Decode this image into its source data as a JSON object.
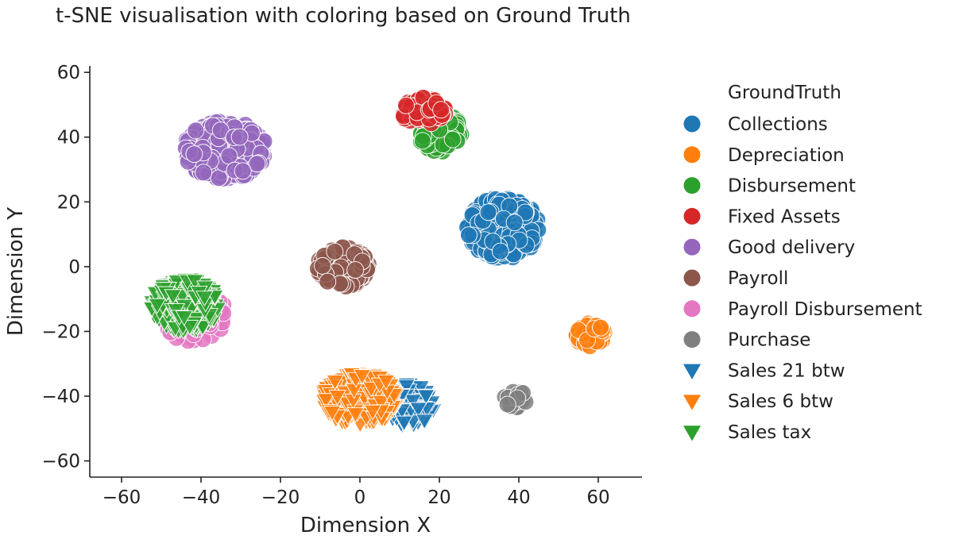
{
  "chart_data": {
    "type": "scatter",
    "title": "t-SNE visualisation with coloring based on Ground Truth",
    "xlabel": "Dimension X",
    "ylabel": "Dimension Y",
    "xlim": [
      -68,
      71
    ],
    "ylim": [
      -65,
      62
    ],
    "xticks": [
      -60,
      -40,
      -20,
      0,
      20,
      40,
      60
    ],
    "yticks": [
      -60,
      -40,
      -20,
      0,
      20,
      40,
      60
    ],
    "xtick_labels": [
      "−60",
      "−40",
      "−20",
      "0",
      "20",
      "40",
      "60"
    ],
    "ytick_labels": [
      "−60",
      "−40",
      "−20",
      "0",
      "20",
      "40",
      "60"
    ],
    "grid": false,
    "legend": {
      "title": "GroundTruth",
      "placement": "right, outside plot"
    },
    "series": [
      {
        "name": "Collections",
        "color": "#1f77b4",
        "marker": "circle",
        "center": [
          36,
          12
        ],
        "spread": [
          19,
          20
        ],
        "count": 340
      },
      {
        "name": "Depreciation",
        "color": "#ff7f0e",
        "marker": "circle",
        "center": [
          58,
          -21
        ],
        "spread": [
          8,
          8
        ],
        "count": 60
      },
      {
        "name": "Disbursement",
        "color": "#2ca02c",
        "marker": "circle",
        "center": [
          20,
          42
        ],
        "spread": [
          12,
          14
        ],
        "count": 110
      },
      {
        "name": "Fixed Assets",
        "color": "#d62728",
        "marker": "circle",
        "center": [
          16,
          48
        ],
        "spread": [
          12,
          9
        ],
        "count": 70
      },
      {
        "name": "Good delivery",
        "color": "#9467bd",
        "marker": "circle",
        "center": [
          -34,
          36
        ],
        "spread": [
          22,
          19
        ],
        "count": 340
      },
      {
        "name": "Payroll",
        "color": "#8c564b",
        "marker": "circle",
        "center": [
          -4,
          0
        ],
        "spread": [
          14,
          13
        ],
        "count": 140
      },
      {
        "name": "Payroll Disbursement",
        "color": "#e377c2",
        "marker": "circle",
        "center": [
          -42,
          -15
        ],
        "spread": [
          18,
          17
        ],
        "count": 60
      },
      {
        "name": "Purchase",
        "color": "#7f7f7f",
        "marker": "circle",
        "center": [
          39,
          -41
        ],
        "spread": [
          6,
          6
        ],
        "count": 25
      },
      {
        "name": "Sales 21 btw",
        "color": "#1f77b4",
        "marker": "triangle-down",
        "center": [
          12,
          -43
        ],
        "spread": [
          14,
          14
        ],
        "count": 110
      },
      {
        "name": "Sales 6 btw",
        "color": "#ff7f0e",
        "marker": "triangle-down",
        "center": [
          0,
          -41
        ],
        "spread": [
          20,
          17
        ],
        "count": 330
      },
      {
        "name": "Sales tax",
        "color": "#2ca02c",
        "marker": "triangle-down",
        "center": [
          -44,
          -12
        ],
        "spread": [
          18,
          17
        ],
        "count": 330
      }
    ]
  }
}
